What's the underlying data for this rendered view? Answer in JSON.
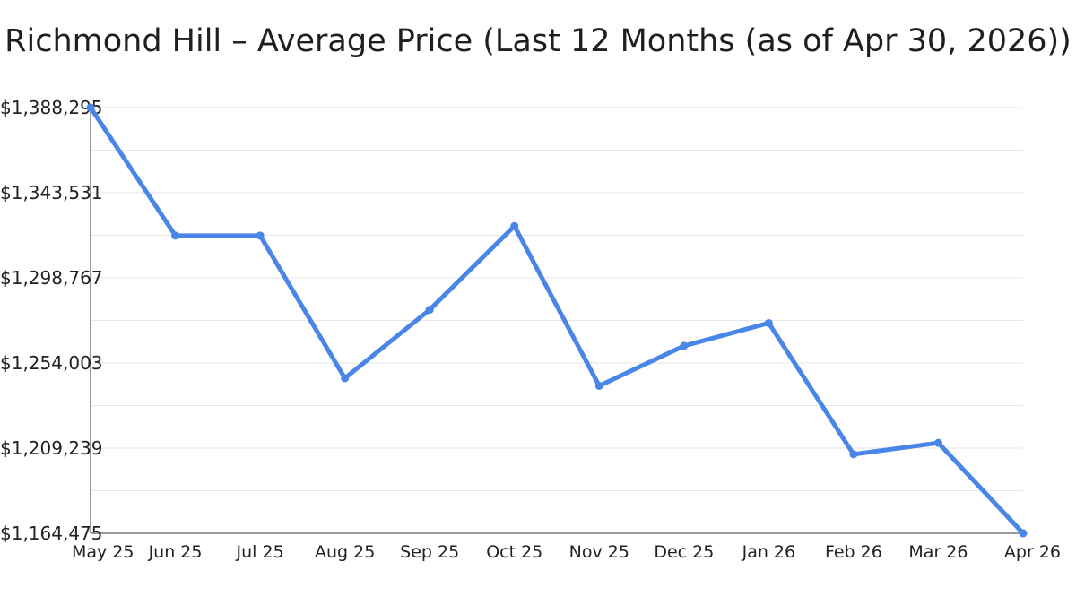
{
  "chart_data": {
    "type": "line",
    "title": "Richmond Hill – Average Price (Last 12 Months (as of Apr 30, 2026))",
    "xlabel": "",
    "ylabel": "",
    "categories": [
      "May 25",
      "Jun 25",
      "Jul 25",
      "Aug 25",
      "Sep 25",
      "Oct 25",
      "Nov 25",
      "Dec 25",
      "Jan 26",
      "Feb 26",
      "Mar 26",
      "Apr 26"
    ],
    "series": [
      {
        "values": [
          1388295,
          1321000,
          1321000,
          1246000,
          1282000,
          1326000,
          1242000,
          1263000,
          1275000,
          1206000,
          1212000,
          1164475
        ]
      }
    ],
    "y_ticks": [
      "$1,164,475",
      "$1,209,239",
      "$1,254,003",
      "$1,298,767",
      "$1,343,531",
      "$1,388,295"
    ],
    "ylim": [
      1164475,
      1388295
    ],
    "grid": true,
    "legend": "none",
    "line_color": "#4a86e8",
    "grid_color": "#e6e6e6",
    "axis_color": "#333333"
  }
}
